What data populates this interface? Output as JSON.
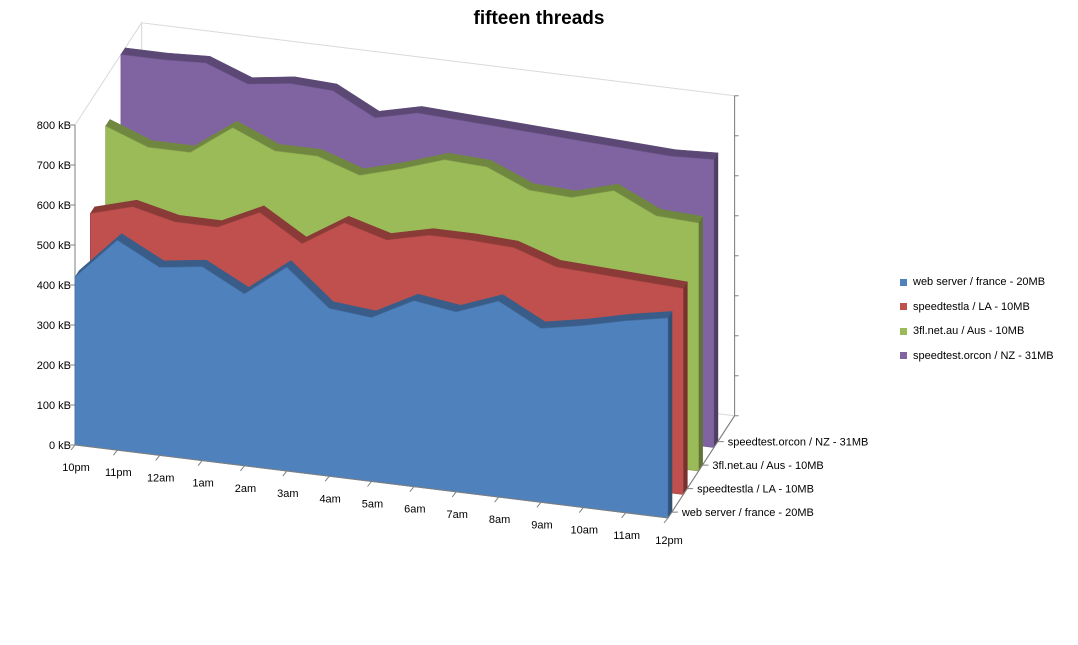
{
  "chart_data": {
    "type": "area",
    "title": "fifteen threads",
    "categories": [
      "10pm",
      "11pm",
      "12am",
      "1am",
      "2am",
      "3am",
      "4am",
      "5am",
      "6am",
      "7am",
      "8am",
      "9am",
      "10am",
      "11am",
      "12pm"
    ],
    "y_tick_labels": [
      "0 kB",
      "100 kB",
      "200 kB",
      "300 kB",
      "400 kB",
      "500 kB",
      "600 kB",
      "700 kB",
      "800 kB"
    ],
    "ylim": [
      0,
      800
    ],
    "y_unit": "kB",
    "grid": false,
    "legend_position": "right",
    "series": [
      {
        "name": "web server / france - 20MB",
        "color": "#4f81bd",
        "values": [
          420,
          525,
          470,
          485,
          430,
          510,
          420,
          410,
          465,
          450,
          490,
          435,
          455,
          480,
          500
        ]
      },
      {
        "name": "speedtestla / LA - 10MB",
        "color": "#c0504d",
        "values": [
          520,
          550,
          525,
          525,
          575,
          510,
          575,
          545,
          570,
          570,
          565,
          530,
          525,
          520,
          515
        ]
      },
      {
        "name": "3fl.net.au / Aus - 10MB",
        "color": "#9bbb59",
        "values": [
          680,
          640,
          640,
          715,
          670,
          670,
          635,
          665,
          700,
          695,
          650,
          645,
          675,
          625,
          620
        ]
      },
      {
        "name": "speedtest.orcon / NZ - 31MB",
        "color": "#8064a2",
        "values": [
          800,
          800,
          805,
          765,
          780,
          775,
          720,
          745,
          740,
          735,
          730,
          725,
          720,
          715,
          720
        ]
      }
    ]
  }
}
